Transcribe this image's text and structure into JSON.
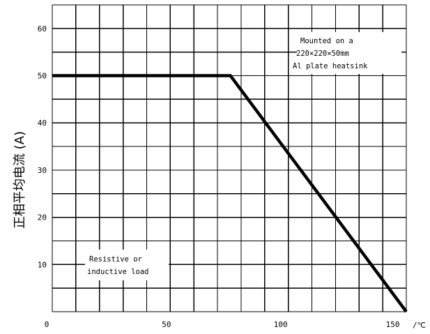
{
  "chart_data": {
    "type": "line",
    "title": "",
    "xlabel": "",
    "x_unit": "/℃",
    "ylabel": "正相平均电流 (A)",
    "xlim": [
      0,
      155
    ],
    "ylim": [
      0,
      65
    ],
    "grid": true,
    "x_ticks": [
      "0",
      "50",
      "100",
      "150"
    ],
    "y_ticks": [
      "10",
      "20",
      "30",
      "40",
      "50",
      "60"
    ],
    "series": [
      {
        "x": [
          0,
          78,
          155
        ],
        "y": [
          50,
          50,
          0
        ]
      }
    ],
    "annotations": [
      {
        "id": "heatsink",
        "lines": [
          "Mounted on a",
          "220×220×50mm",
          "Al plate heatsink"
        ]
      },
      {
        "id": "load",
        "lines": [
          "Resistive or",
          "inductive load"
        ]
      }
    ]
  }
}
